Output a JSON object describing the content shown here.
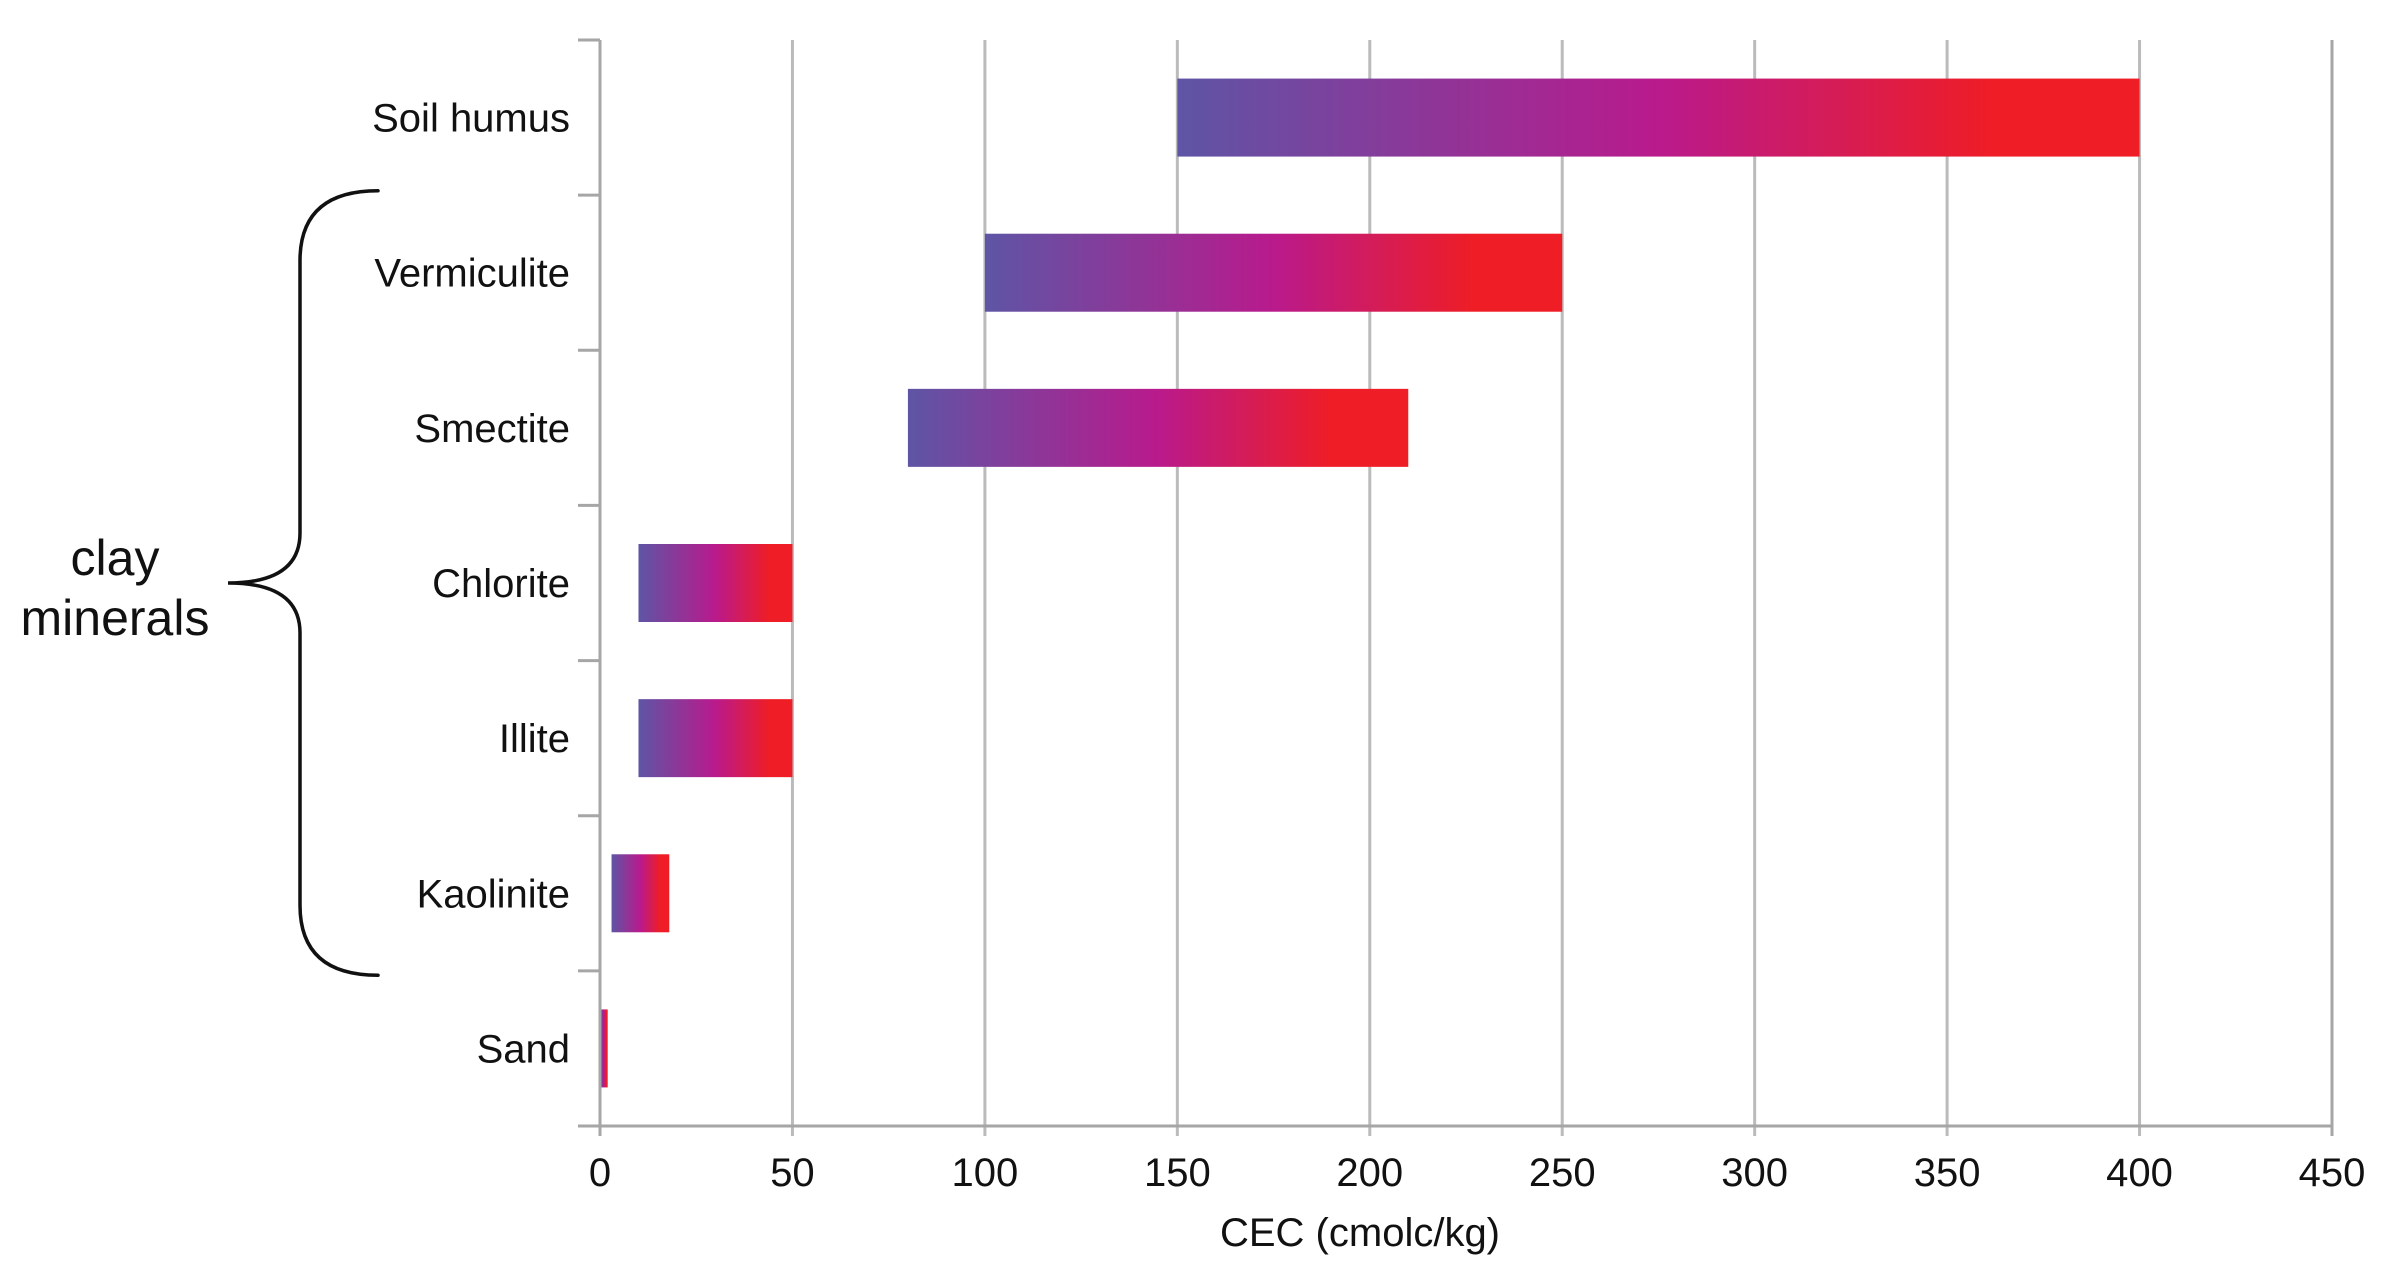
{
  "chart_data": {
    "type": "bar",
    "orientation": "horizontal",
    "style": "floating-range",
    "title": "",
    "xlabel": "CEC (cmolc/kg)",
    "ylabel": "",
    "xlim": [
      0,
      450
    ],
    "x_ticks": [
      0,
      50,
      100,
      150,
      200,
      250,
      300,
      350,
      400,
      450
    ],
    "grid": "vertical",
    "categories": [
      "Soil humus",
      "Vermiculite",
      "Smectite",
      "Chlorite",
      "Illite",
      "Kaolinite",
      "Sand"
    ],
    "ranges": [
      {
        "category": "Soil humus",
        "min": 150,
        "max": 400
      },
      {
        "category": "Vermiculite",
        "min": 100,
        "max": 250
      },
      {
        "category": "Smectite",
        "min": 80,
        "max": 210
      },
      {
        "category": "Chlorite",
        "min": 10,
        "max": 50
      },
      {
        "category": "Illite",
        "min": 10,
        "max": 50
      },
      {
        "category": "Kaolinite",
        "min": 3,
        "max": 18
      },
      {
        "category": "Sand",
        "min": 0,
        "max": 2
      }
    ],
    "bracket_group": {
      "label_lines": [
        "clay",
        "minerals"
      ],
      "categories": [
        "Vermiculite",
        "Smectite",
        "Chlorite",
        "Illite",
        "Kaolinite"
      ]
    },
    "colors": {
      "gradient_start": "#5e55a5",
      "gradient_mid": "#b91a8c",
      "gradient_end": "#ef1d25",
      "grid": "#bbbbbb",
      "axis": "#a6a6a6"
    }
  }
}
